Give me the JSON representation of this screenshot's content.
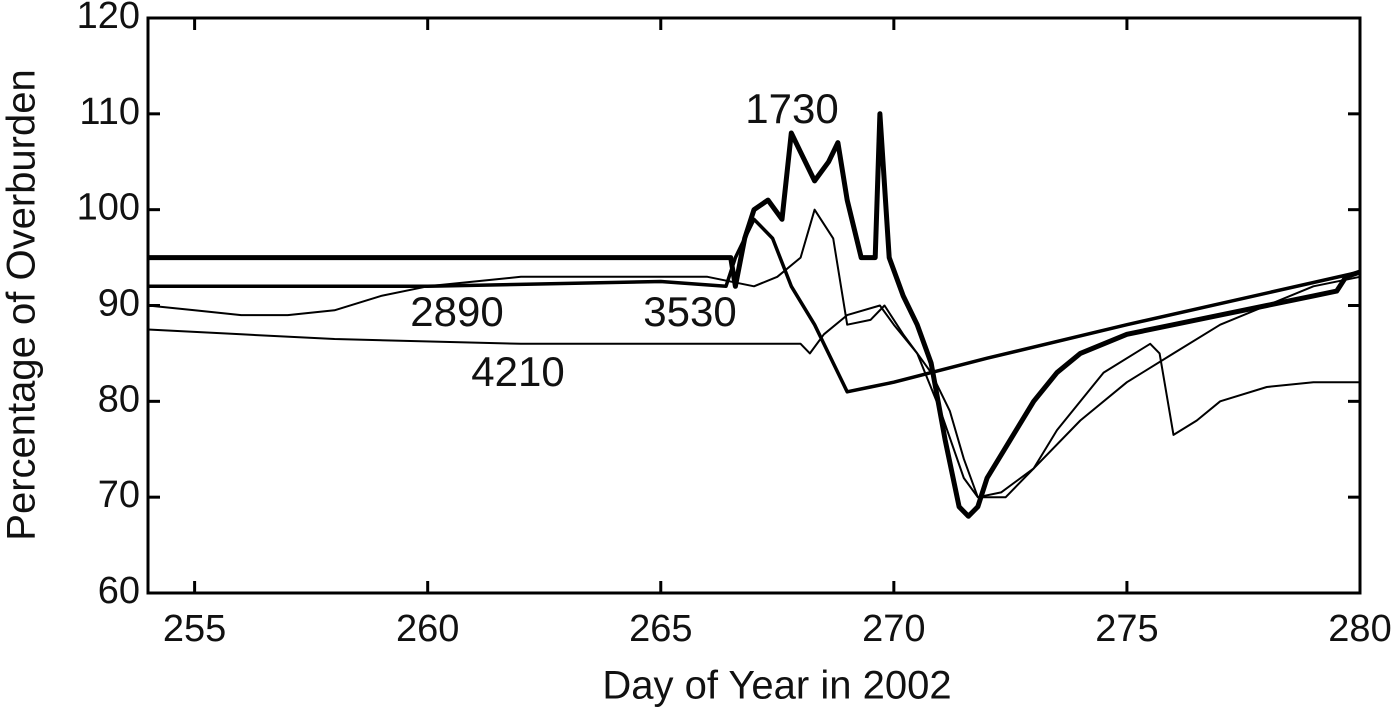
{
  "chart_data": {
    "type": "line",
    "xlabel": "Day of Year in 2002",
    "ylabel": "Percentage of Overburden",
    "xlim": [
      254,
      280
    ],
    "xticks": [
      255,
      260,
      265,
      270,
      275,
      280
    ],
    "ylim": [
      60,
      120
    ],
    "yticks": [
      60,
      70,
      80,
      90,
      100,
      110,
      120
    ],
    "grid": false,
    "series": [
      {
        "name": "1730",
        "color": "#000000",
        "x": [
          254,
          266.5,
          266.6,
          266.8,
          267,
          267.3,
          267.6,
          267.8,
          268,
          268.3,
          268.6,
          268.8,
          269,
          269.3,
          269.6,
          269.7,
          269.9,
          270.2,
          270.5,
          270.8,
          271.1,
          271.4,
          271.6,
          271.8,
          272,
          272.5,
          273,
          273.5,
          274,
          275,
          276,
          277,
          278,
          279,
          279.5,
          279.7,
          280
        ],
        "values": [
          95,
          95,
          92,
          97,
          100,
          101,
          99,
          108,
          106,
          103,
          105,
          107,
          101,
          95,
          95,
          110,
          95,
          91,
          88,
          84,
          76,
          69,
          68,
          69,
          72,
          76,
          80,
          83,
          85,
          87,
          88,
          89,
          90,
          91,
          91.5,
          93,
          93.5
        ]
      },
      {
        "name": "2890",
        "color": "#000000",
        "x": [
          254,
          260,
          265,
          266.4,
          266.6,
          267,
          267.4,
          267.8,
          268.3,
          268.7,
          269,
          269.5,
          270,
          272,
          275,
          280
        ],
        "values": [
          92,
          92,
          92.5,
          92,
          95,
          99,
          97,
          92,
          88,
          84,
          81,
          81.5,
          82,
          84.5,
          88,
          93.5
        ]
      },
      {
        "name": "3530",
        "color": "#000000",
        "x": [
          254,
          255,
          256,
          257,
          258,
          259,
          260,
          262,
          264,
          266,
          267,
          267.5,
          268,
          268.3,
          268.7,
          269,
          269.5,
          269.8,
          270.2,
          270.5,
          270.8,
          271.2,
          271.5,
          271.8,
          272.3,
          273,
          274,
          275,
          276,
          277,
          278,
          279,
          280
        ],
        "values": [
          90,
          89.5,
          89,
          89,
          89.5,
          91,
          92,
          93,
          93,
          93,
          92,
          93,
          95,
          100,
          97,
          88,
          88.5,
          90,
          87,
          85,
          83,
          79,
          74,
          70,
          70.5,
          73,
          78,
          82,
          85,
          88,
          90,
          92,
          93
        ]
      },
      {
        "name": "4210",
        "color": "#000000",
        "x": [
          254,
          256,
          258,
          262,
          266,
          267.5,
          268,
          268.2,
          268.5,
          269,
          269.7,
          270,
          270.5,
          271,
          271.5,
          271.8,
          272.4,
          273,
          273.5,
          274.5,
          275.5,
          275.7,
          276,
          276.5,
          277,
          278,
          279,
          280
        ],
        "values": [
          87.5,
          87,
          86.5,
          86,
          86,
          86,
          86,
          85,
          87,
          89,
          90,
          88,
          85,
          79,
          72,
          70,
          70,
          73,
          77,
          83,
          86,
          85,
          76.5,
          78,
          80,
          81.5,
          82,
          82
        ]
      }
    ]
  }
}
